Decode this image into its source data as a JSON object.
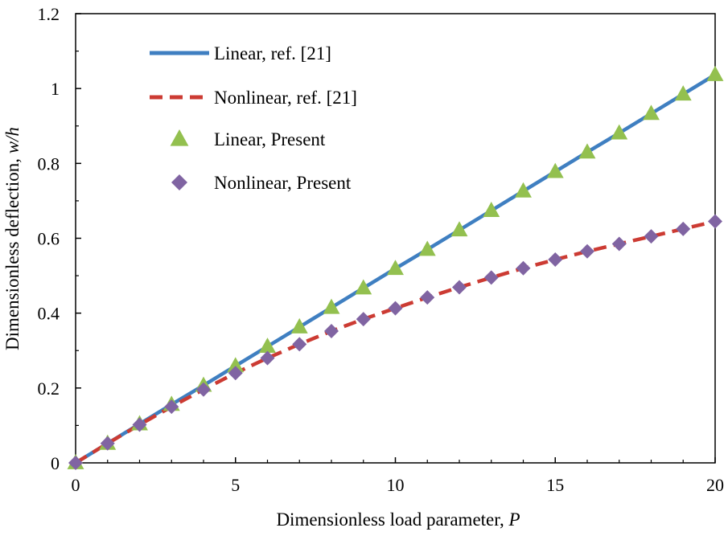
{
  "chart_data": {
    "type": "line",
    "title": "",
    "xlabel": "Dimensionless load parameter, ",
    "xlabel_var": "P",
    "ylabel": "Dimensionless deflection, ",
    "ylabel_var": "w/h",
    "xlim": [
      0,
      20
    ],
    "ylim": [
      0,
      1.2
    ],
    "x_ticks": [
      0,
      5,
      10,
      15,
      20
    ],
    "x_tick_labels": [
      "0",
      "5",
      "10",
      "15",
      "20"
    ],
    "y_ticks": [
      0,
      0.2,
      0.4,
      0.6,
      0.8,
      1.0,
      1.2
    ],
    "y_tick_labels": [
      "0",
      "0.2",
      "0.4",
      "0.6",
      "0.8",
      "1",
      "1.2"
    ],
    "grid": false,
    "legend_position": "top-left",
    "x": [
      0,
      1,
      2,
      3,
      4,
      5,
      6,
      7,
      8,
      9,
      10,
      11,
      12,
      13,
      14,
      15,
      16,
      17,
      18,
      19,
      20
    ],
    "series": [
      {
        "name": "Linear, ref. [21]",
        "style": "solid-line",
        "color": "#3f7fc1",
        "values": [
          0,
          0.052,
          0.104,
          0.156,
          0.207,
          0.259,
          0.311,
          0.363,
          0.415,
          0.467,
          0.519,
          0.57,
          0.622,
          0.674,
          0.726,
          0.778,
          0.83,
          0.881,
          0.933,
          0.985,
          1.037
        ]
      },
      {
        "name": "Nonlinear, ref. [21]",
        "style": "dashed-line",
        "color": "#cc3b33",
        "values": [
          0,
          0.052,
          0.102,
          0.15,
          0.196,
          0.24,
          0.28,
          0.317,
          0.352,
          0.384,
          0.413,
          0.442,
          0.469,
          0.495,
          0.52,
          0.543,
          0.565,
          0.585,
          0.605,
          0.625,
          0.645
        ]
      },
      {
        "name": "Linear, Present",
        "style": "triangle-marker",
        "color": "#93c04f",
        "values": [
          0,
          0.052,
          0.104,
          0.156,
          0.207,
          0.259,
          0.311,
          0.363,
          0.415,
          0.467,
          0.519,
          0.57,
          0.622,
          0.674,
          0.726,
          0.778,
          0.83,
          0.881,
          0.933,
          0.985,
          1.037
        ]
      },
      {
        "name": "Nonlinear, Present",
        "style": "diamond-marker",
        "color": "#8064a2",
        "values": [
          0,
          0.052,
          0.102,
          0.15,
          0.196,
          0.24,
          0.28,
          0.317,
          0.352,
          0.384,
          0.413,
          0.442,
          0.469,
          0.495,
          0.52,
          0.543,
          0.565,
          0.585,
          0.605,
          0.625,
          0.645
        ]
      }
    ]
  }
}
